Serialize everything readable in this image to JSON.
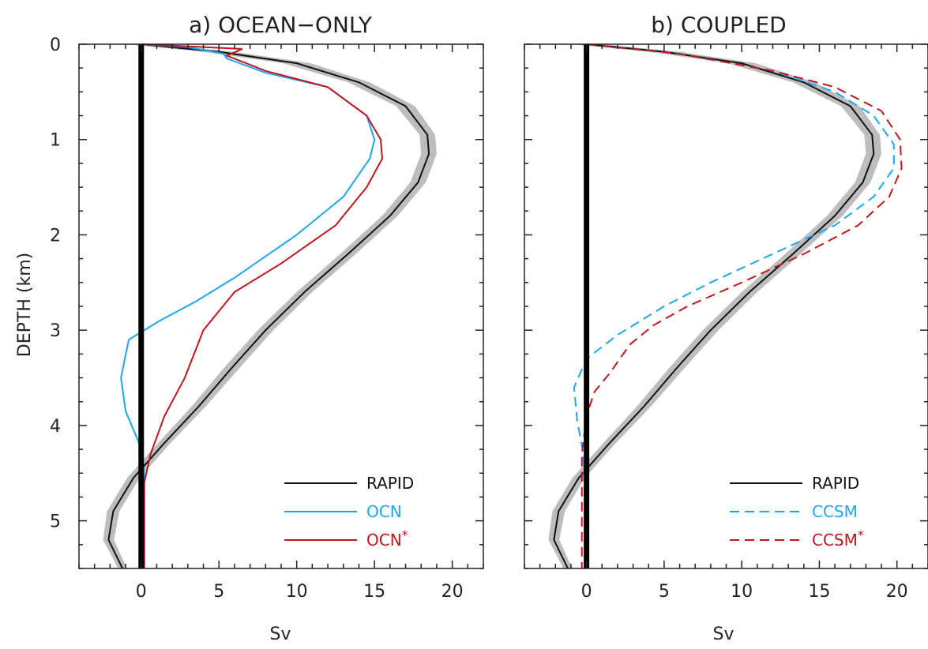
{
  "chart_data": [
    {
      "type": "line",
      "title": "a) OCEAN−ONLY",
      "xlabel": "Sv",
      "ylabel": "DEPTH (km)",
      "xlim": [
        -4,
        22
      ],
      "ylim": [
        0,
        5.5
      ],
      "y_inverted": true,
      "x_ticks": [
        "0",
        "5",
        "10",
        "15",
        "20"
      ],
      "y_ticks": [
        "0",
        "1",
        "2",
        "3",
        "4",
        "5"
      ],
      "grid": false,
      "zero_line": true,
      "legend_position": "bottom-right",
      "series": [
        {
          "name": "RAPID",
          "color": "#111111",
          "dash": "solid",
          "band_color": "#bdbdbd",
          "points": [
            [
              0,
              0
            ],
            [
              5,
              0.08
            ],
            [
              10,
              0.2
            ],
            [
              14,
              0.4
            ],
            [
              17,
              0.65
            ],
            [
              18.4,
              0.95
            ],
            [
              18.5,
              1.15
            ],
            [
              17.8,
              1.45
            ],
            [
              16,
              1.8
            ],
            [
              13.3,
              2.2
            ],
            [
              10.5,
              2.6
            ],
            [
              8,
              3.0
            ],
            [
              5.8,
              3.4
            ],
            [
              3.7,
              3.8
            ],
            [
              1.4,
              4.2
            ],
            [
              -0.5,
              4.55
            ],
            [
              -1.8,
              4.9
            ],
            [
              -2.1,
              5.2
            ],
            [
              -1.5,
              5.4
            ],
            [
              -1.2,
              5.5
            ]
          ],
          "band": [
            1.0,
            1.0,
            0.9,
            0.7,
            0.6,
            0.5,
            0.5,
            0.5,
            0.5,
            0.5,
            0.5,
            0.5,
            0.5,
            0.45,
            0.4,
            0.4,
            0.4,
            0.35,
            0.3,
            0.3
          ]
        },
        {
          "name": "OCN",
          "color": "#1ea6f0",
          "dash": "solid",
          "points": [
            [
              0,
              0
            ],
            [
              3,
              0.03
            ],
            [
              5.3,
              0.1
            ],
            [
              5.5,
              0.15
            ],
            [
              8,
              0.3
            ],
            [
              12,
              0.45
            ],
            [
              14.5,
              0.75
            ],
            [
              15,
              1.0
            ],
            [
              14.7,
              1.2
            ],
            [
              13,
              1.6
            ],
            [
              10,
              2.0
            ],
            [
              6,
              2.45
            ],
            [
              3.5,
              2.7
            ],
            [
              1.2,
              2.9
            ],
            [
              -0.8,
              3.1
            ],
            [
              -1.3,
              3.5
            ],
            [
              -1.0,
              3.85
            ],
            [
              -0.1,
              4.2
            ],
            [
              0.2,
              4.5
            ],
            [
              0.2,
              5.5
            ]
          ]
        },
        {
          "name": "OCN*",
          "color": "#c0161d",
          "dash": "solid",
          "points": [
            [
              0,
              0
            ],
            [
              4,
              0.03
            ],
            [
              6.5,
              0.05
            ],
            [
              5.5,
              0.12
            ],
            [
              8,
              0.28
            ],
            [
              12,
              0.45
            ],
            [
              14.5,
              0.75
            ],
            [
              15.4,
              1.0
            ],
            [
              15.5,
              1.2
            ],
            [
              14.5,
              1.5
            ],
            [
              12.5,
              1.9
            ],
            [
              9,
              2.3
            ],
            [
              6,
              2.6
            ],
            [
              4,
              3.0
            ],
            [
              2.8,
              3.5
            ],
            [
              1.5,
              3.9
            ],
            [
              0.6,
              4.3
            ],
            [
              0.2,
              4.6
            ],
            [
              0.2,
              5.5
            ]
          ]
        }
      ]
    },
    {
      "type": "line",
      "title": "b) COUPLED",
      "xlabel": "Sv",
      "xlim": [
        -4,
        22
      ],
      "ylim": [
        0,
        5.5
      ],
      "y_inverted": true,
      "x_ticks": [
        "0",
        "5",
        "10",
        "15",
        "20"
      ],
      "grid": false,
      "zero_line": true,
      "legend_position": "bottom-right",
      "series": [
        {
          "name": "RAPID",
          "color": "#111111",
          "dash": "solid",
          "band_color": "#bdbdbd",
          "points": [
            [
              0,
              0
            ],
            [
              5,
              0.08
            ],
            [
              10,
              0.2
            ],
            [
              14,
              0.4
            ],
            [
              17,
              0.65
            ],
            [
              18.4,
              0.95
            ],
            [
              18.5,
              1.15
            ],
            [
              17.8,
              1.45
            ],
            [
              16,
              1.8
            ],
            [
              13.3,
              2.2
            ],
            [
              10.5,
              2.6
            ],
            [
              8,
              3.0
            ],
            [
              5.8,
              3.4
            ],
            [
              3.7,
              3.8
            ],
            [
              1.4,
              4.2
            ],
            [
              -0.5,
              4.55
            ],
            [
              -1.8,
              4.9
            ],
            [
              -2.1,
              5.2
            ],
            [
              -1.5,
              5.4
            ],
            [
              -1.2,
              5.5
            ]
          ],
          "band": [
            1.0,
            1.0,
            0.9,
            0.7,
            0.6,
            0.5,
            0.5,
            0.5,
            0.5,
            0.5,
            0.5,
            0.5,
            0.5,
            0.45,
            0.4,
            0.4,
            0.4,
            0.35,
            0.3,
            0.3
          ]
        },
        {
          "name": "CCSM",
          "color": "#1ea6f0",
          "dash": "dashed",
          "points": [
            [
              0,
              0
            ],
            [
              6,
              0.1
            ],
            [
              12,
              0.28
            ],
            [
              16,
              0.5
            ],
            [
              18.5,
              0.75
            ],
            [
              19.8,
              1.05
            ],
            [
              19.8,
              1.3
            ],
            [
              18.5,
              1.6
            ],
            [
              16,
              1.9
            ],
            [
              12,
              2.2
            ],
            [
              8,
              2.5
            ],
            [
              5,
              2.75
            ],
            [
              2,
              3.05
            ],
            [
              0,
              3.3
            ],
            [
              -0.8,
              3.6
            ],
            [
              -0.6,
              3.95
            ],
            [
              -0.2,
              4.3
            ],
            [
              0,
              5.5
            ]
          ]
        },
        {
          "name": "CCSM*",
          "color": "#c0161d",
          "dash": "dashed",
          "points": [
            [
              0,
              0
            ],
            [
              6,
              0.1
            ],
            [
              12,
              0.28
            ],
            [
              16,
              0.45
            ],
            [
              19,
              0.7
            ],
            [
              20.2,
              1.0
            ],
            [
              20.3,
              1.3
            ],
            [
              19.5,
              1.6
            ],
            [
              17.5,
              1.9
            ],
            [
              14,
              2.2
            ],
            [
              10,
              2.5
            ],
            [
              6.5,
              2.75
            ],
            [
              4.3,
              2.95
            ],
            [
              2.8,
              3.15
            ],
            [
              1.5,
              3.45
            ],
            [
              0.5,
              3.65
            ],
            [
              0,
              3.9
            ],
            [
              -0.3,
              4.3
            ],
            [
              -0.3,
              5.5
            ]
          ]
        }
      ]
    }
  ]
}
